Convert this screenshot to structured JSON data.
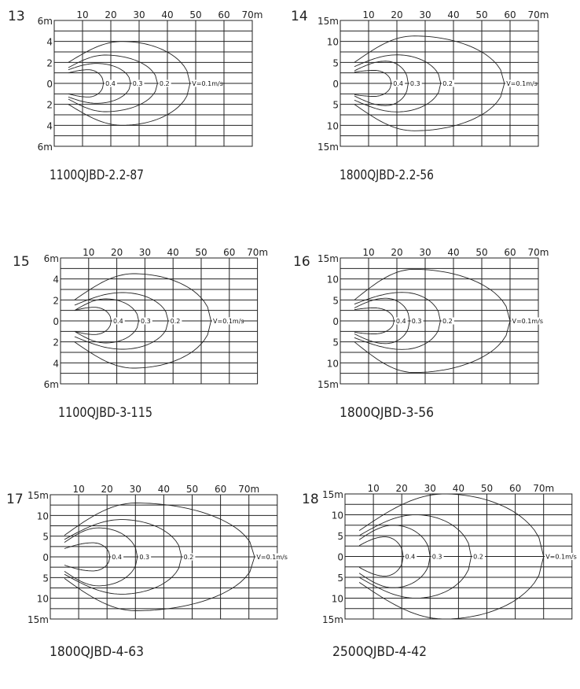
{
  "panels": [
    {
      "number": "13",
      "caption": "1100QJBD-2.2-87",
      "x_range": [
        0,
        70
      ],
      "y_max": 6,
      "x_ticks": [
        "10",
        "20",
        "30",
        "40",
        "50",
        "60",
        "70m"
      ],
      "y_ticks": [
        "6m",
        "4",
        "2",
        "0",
        "2",
        "4",
        "6m"
      ],
      "contours": [
        {
          "label": "0.4",
          "nose_x": 17.4,
          "max_half_width": 1.3,
          "at_x": 12,
          "start_half_width": 1.0
        },
        {
          "label": "0.3",
          "nose_x": 27,
          "max_half_width": 1.9,
          "at_x": 15,
          "start_half_width": 1.3
        },
        {
          "label": "0.2",
          "nose_x": 36.5,
          "max_half_width": 2.7,
          "at_x": 18,
          "start_half_width": 1.5
        },
        {
          "label": "V=0.1m/s",
          "nose_x": 48,
          "max_half_width": 4.0,
          "at_x": 24,
          "start_half_width": 2.0
        }
      ]
    },
    {
      "number": "14",
      "caption": "1800QJBD-2.2-56",
      "x_range": [
        0,
        70
      ],
      "y_max": 15,
      "x_ticks": [
        "10",
        "20",
        "30",
        "40",
        "50",
        "60",
        "70m"
      ],
      "y_ticks": [
        "15m",
        "10",
        "5",
        "0",
        "5",
        "10",
        "15m"
      ],
      "contours": [
        {
          "label": "0.4",
          "nose_x": 18,
          "max_half_width": 3.1,
          "at_x": 12,
          "start_half_width": 2.7
        },
        {
          "label": "0.3",
          "nose_x": 24,
          "max_half_width": 5.3,
          "at_x": 16,
          "start_half_width": 3.0
        },
        {
          "label": "0.2",
          "nose_x": 35.5,
          "max_half_width": 6.8,
          "at_x": 20,
          "start_half_width": 4.0
        },
        {
          "label": "V=0.1m/s",
          "nose_x": 58,
          "max_half_width": 11.3,
          "at_x": 26,
          "start_half_width": 5.0
        }
      ]
    },
    {
      "number": "15",
      "caption": "1100QJBD-3-115",
      "x_range": [
        0,
        70
      ],
      "y_max": 6,
      "x_ticks": [
        "10",
        "20",
        "30",
        "40",
        "50",
        "60",
        "70m"
      ],
      "y_ticks": [
        "6m",
        "4",
        "2",
        "0",
        "2",
        "4",
        "6m"
      ],
      "contours": [
        {
          "label": "0.4",
          "nose_x": 18,
          "max_half_width": 1.3,
          "at_x": 12,
          "start_half_width": 1.0
        },
        {
          "label": "0.3",
          "nose_x": 27.8,
          "max_half_width": 2.1,
          "at_x": 16,
          "start_half_width": 1.0
        },
        {
          "label": "0.2",
          "nose_x": 38.3,
          "max_half_width": 2.7,
          "at_x": 22,
          "start_half_width": 1.5
        },
        {
          "label": "V=0.1m/s",
          "nose_x": 53.5,
          "max_half_width": 4.5,
          "at_x": 26,
          "start_half_width": 2.0
        }
      ]
    },
    {
      "number": "16",
      "caption": "1800QJBD-3-56",
      "x_range": [
        0,
        70
      ],
      "y_max": 15,
      "x_ticks": [
        "10",
        "20",
        "30",
        "40",
        "50",
        "60",
        "70m"
      ],
      "y_ticks": [
        "15m",
        "10",
        "5",
        "0",
        "5",
        "10",
        "15m"
      ],
      "contours": [
        {
          "label": "0.4",
          "nose_x": 19,
          "max_half_width": 3.1,
          "at_x": 12,
          "start_half_width": 2.7
        },
        {
          "label": "0.3",
          "nose_x": 24.5,
          "max_half_width": 5.4,
          "at_x": 16,
          "start_half_width": 3.1
        },
        {
          "label": "0.2",
          "nose_x": 35.4,
          "max_half_width": 6.8,
          "at_x": 22,
          "start_half_width": 4.0
        },
        {
          "label": "V=0.1m/s",
          "nose_x": 60,
          "max_half_width": 12.3,
          "at_x": 26,
          "start_half_width": 5.0
        }
      ]
    },
    {
      "number": "17",
      "caption": "1800QJBD-4-63",
      "x_range": [
        0,
        80
      ],
      "y_max": 15,
      "x_ticks": [
        "10",
        "20",
        "30",
        "40",
        "50",
        "60",
        "70m"
      ],
      "y_ticks": [
        "15m",
        "10",
        "5",
        "0",
        "5",
        "10",
        "15m"
      ],
      "contours": [
        {
          "label": "0.4",
          "nose_x": 21,
          "max_half_width": 3.4,
          "at_x": 15,
          "start_half_width": 2.0
        },
        {
          "label": "0.3",
          "nose_x": 30.7,
          "max_half_width": 7.0,
          "at_x": 17,
          "start_half_width": 3.5
        },
        {
          "label": "0.2",
          "nose_x": 46.3,
          "max_half_width": 9.0,
          "at_x": 25,
          "start_half_width": 4.2
        },
        {
          "label": "V=0.1m/s",
          "nose_x": 72,
          "max_half_width": 13.0,
          "at_x": 30,
          "start_half_width": 5.2
        }
      ]
    },
    {
      "number": "18",
      "caption": "2500QJBD-4-42",
      "x_range": [
        0,
        80
      ],
      "y_max": 15,
      "x_ticks": [
        "10",
        "20",
        "30",
        "40",
        "50",
        "60",
        "70m"
      ],
      "y_ticks": [
        "15m",
        "10",
        "5",
        "0",
        "5",
        "10",
        "15m"
      ],
      "contours": [
        {
          "label": "0.4",
          "nose_x": 20.5,
          "max_half_width": 4.7,
          "at_x": 14,
          "start_half_width": 2.6
        },
        {
          "label": "0.3",
          "nose_x": 30,
          "max_half_width": 7.5,
          "at_x": 17,
          "start_half_width": 4.0
        },
        {
          "label": "0.2",
          "nose_x": 44.5,
          "max_half_width": 10.0,
          "at_x": 25,
          "start_half_width": 5.0
        },
        {
          "label": "V=0.1m/s",
          "nose_x": 70,
          "max_half_width": 15.0,
          "at_x": 35,
          "start_half_width": 6.2
        }
      ]
    }
  ]
}
